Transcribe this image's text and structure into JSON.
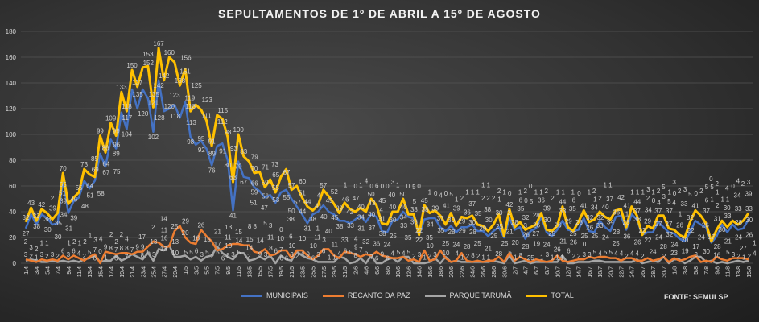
{
  "chart_data": {
    "type": "line",
    "title": "SEPULTAMENTOS  DE 1º DE ABRIL A 15º DE AGOSTO",
    "source": "FONTE: SEMULSP",
    "ylim": [
      0,
      180
    ],
    "yticks": [
      0,
      20,
      40,
      60,
      80,
      100,
      120,
      140,
      160,
      180
    ],
    "grid": true,
    "legend_position": "bottom",
    "categories": [
      "1/4",
      "2/4",
      "3/4",
      "4/4",
      "5/4",
      "6/4",
      "7/4",
      "8/4",
      "9/4",
      "10/4",
      "11/4",
      "12/4",
      "13/4",
      "14/4",
      "15/4",
      "16/4",
      "17/4",
      "18/4",
      "19/4",
      "20/4",
      "21/4",
      "22/4",
      "23/4",
      "24/4",
      "25/4",
      "26/4",
      "27/4",
      "28/4",
      "29/4",
      "30/4",
      "1/5",
      "2/5",
      "3/5",
      "4/5",
      "5/5",
      "6/5",
      "7/5",
      "8/5",
      "9/5",
      "10/5",
      "11/5",
      "12/5",
      "13/5",
      "14/5",
      "15/5",
      "16/5",
      "17/5",
      "18/5",
      "19/5",
      "20/5",
      "21/5",
      "22/5",
      "23/5",
      "24/5",
      "25/5",
      "26/5",
      "27/5",
      "28/5",
      "29/5",
      "30/5",
      "31/5",
      "1/6",
      "2/6",
      "3/6",
      "4/6",
      "5/6",
      "6/6",
      "7/6",
      "8/6",
      "9/6",
      "10/6",
      "11/6",
      "12/6",
      "13/6",
      "14/6",
      "15/6",
      "16/6",
      "17/6",
      "18/6",
      "19/6",
      "20/6",
      "21/6",
      "22/6",
      "23/6",
      "24/6",
      "25/6",
      "26/6",
      "27/6",
      "28/6",
      "29/6",
      "30/6",
      "1/7",
      "2/7",
      "3/7",
      "4/7",
      "5/7",
      "6/7",
      "7/7",
      "8/7",
      "9/7",
      "10/7",
      "11/7",
      "12/7",
      "13/7",
      "14/7",
      "15/7",
      "16/7",
      "17/7",
      "18/7",
      "19/7",
      "20/7",
      "21/7",
      "22/7",
      "23/7",
      "24/7",
      "25/7",
      "26/7",
      "27/7",
      "28/7",
      "29/7",
      "30/7",
      "31/7",
      "1/8",
      "2/8",
      "3/8",
      "4/8",
      "5/8",
      "6/8",
      "7/8",
      "8/8",
      "9/8",
      "10/8",
      "11/8",
      "12/8",
      "13/8",
      "14/8",
      "15/8"
    ],
    "series": [
      {
        "name": "MUNICIPAIS",
        "color": "#4472C4",
        "values": [
          27,
          38,
          30,
          38,
          35,
          30,
          31,
          65,
          39,
          48,
          51,
          64,
          58,
          64,
          85,
          75,
          96,
          89,
          117,
          104,
          135,
          120,
          135,
          128,
          102,
          142,
          118,
          120,
          123,
          113,
          125,
          98,
          92,
          95,
          89,
          76,
          91,
          93,
          80,
          41,
          79,
          67,
          66,
          59,
          56,
          51,
          53,
          47,
          55,
          57,
          50,
          44,
          38,
          31,
          38,
          40,
          45,
          40,
          38,
          33,
          33,
          31,
          34,
          37,
          32,
          38,
          36,
          25,
          24,
          33,
          34,
          40,
          36,
          35,
          22,
          34,
          35,
          35,
          28,
          25,
          29,
          24,
          28,
          28,
          30,
          25,
          25,
          21,
          25,
          28,
          20,
          35,
          26,
          28,
          19,
          25,
          27,
          36,
          24,
          21,
          26,
          33,
          26,
          25,
          26,
          35,
          25,
          24,
          33,
          28,
          25,
          36,
          37,
          26,
          38,
          34,
          22,
          24,
          24,
          32,
          28,
          24,
          23,
          19,
          17,
          24,
          33,
          30,
          28,
          16,
          21,
          30,
          24,
          30,
          26,
          27,
          34
        ]
      },
      {
        "name": "RECANTO DA PAZ",
        "color": "#ED7D31",
        "values": [
          3,
          2,
          1,
          3,
          2,
          3,
          2,
          6,
          3,
          6,
          4,
          2,
          5,
          7,
          0,
          9,
          8,
          7,
          8,
          8,
          7,
          9,
          9,
          13,
          17,
          16,
          13,
          13,
          25,
          29,
          20,
          16,
          15,
          26,
          21,
          17,
          10,
          11,
          14,
          15,
          15,
          14,
          14,
          9,
          8,
          11,
          6,
          7,
          10,
          10,
          4,
          10,
          10,
          6,
          3,
          6,
          11,
          11,
          6,
          4,
          9,
          8,
          7,
          5,
          7,
          6,
          9,
          6,
          5,
          4,
          4,
          5,
          2,
          3,
          1,
          10,
          2,
          3,
          10,
          4,
          1,
          2,
          8,
          2,
          1,
          2,
          1,
          2,
          2,
          5,
          1,
          8,
          2,
          5,
          3,
          1,
          3,
          2,
          1,
          2,
          6,
          2,
          1,
          2,
          3,
          3,
          5,
          4,
          5,
          5,
          4,
          4,
          2,
          4,
          4,
          2,
          2,
          4,
          2,
          3,
          5,
          1,
          4,
          2,
          3,
          5,
          6,
          1,
          2,
          1,
          5,
          3,
          2,
          4,
          4,
          4,
          3
        ]
      },
      {
        "name": "PARQUE TARUMÃ",
        "color": "#A5A5A5",
        "values": [
          2,
          3,
          2,
          1,
          1,
          2,
          1,
          2,
          1,
          2,
          1,
          3,
          4,
          6,
          1,
          2,
          2,
          6,
          2,
          4,
          7,
          5,
          3,
          8,
          2,
          11,
          10,
          14,
          5,
          5,
          6,
          3,
          5,
          2,
          5,
          6,
          13,
          8,
          5,
          3,
          8,
          8,
          2,
          3,
          5,
          3,
          6,
          0,
          6,
          3,
          2,
          9,
          6,
          4,
          3,
          1,
          1,
          1,
          1,
          5,
          4,
          0,
          1,
          4,
          0,
          6,
          0,
          0,
          3,
          4,
          1,
          5,
          5,
          0,
          0,
          0,
          1,
          4,
          0,
          5,
          1,
          2,
          1,
          1,
          1,
          1,
          1,
          1,
          2,
          1,
          0,
          6,
          0,
          1,
          2,
          0,
          1,
          1,
          1,
          1,
          1,
          6,
          0,
          0,
          1,
          1,
          1,
          2,
          2,
          1,
          1,
          1,
          1,
          1,
          1,
          3,
          0,
          1,
          2,
          1,
          5,
          0,
          3,
          3,
          0,
          2,
          5,
          5,
          1,
          2,
          0,
          1,
          0,
          1,
          2,
          1,
          2
        ]
      },
      {
        "name": "TOTAL",
        "color": "#FFC000",
        "values": [
          32,
          43,
          33,
          42,
          39,
          34,
          39,
          70,
          46,
          51,
          55,
          73,
          69,
          67,
          99,
          86,
          109,
          99,
          133,
          118,
          150,
          137,
          152,
          153,
          121,
          167,
          142,
          160,
          156,
          138,
          151,
          118,
          123,
          119,
          111,
          91,
          115,
          112,
          98,
          63,
          100,
          83,
          79,
          70,
          71,
          59,
          65,
          55,
          67,
          73,
          57,
          60,
          51,
          44,
          41,
          45,
          57,
          52,
          46,
          39,
          47,
          42,
          40,
          43,
          40,
          50,
          45,
          31,
          30,
          40,
          40,
          50,
          38,
          38,
          22,
          45,
          39,
          41,
          37,
          30,
          39,
          29,
          36,
          35,
          37,
          30,
          29,
          25,
          30,
          38,
          21,
          42,
          28,
          32,
          26,
          28,
          30,
          39,
          26,
          25,
          29,
          44,
          28,
          25,
          32,
          41,
          32,
          34,
          40,
          36,
          34,
          41,
          42,
          28,
          44,
          37,
          22,
          29,
          27,
          37,
          37,
          27,
          26,
          22,
          20,
          32,
          41,
          37,
          31,
          17,
          26,
          33,
          28,
          33,
          30,
          33,
          39
        ]
      }
    ]
  }
}
